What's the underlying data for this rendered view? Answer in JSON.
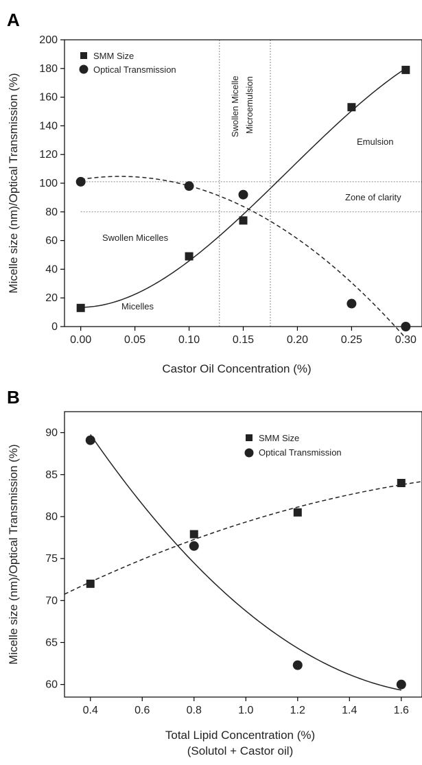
{
  "charts": [
    {
      "panel_label": "A",
      "xlabel": "Castor Oil Concentration (%)",
      "ylabel": "Micelle size (nm)/Optical Transmission (%)",
      "legend": [
        {
          "label": "SMM Size",
          "marker": "square"
        },
        {
          "label": "Optical Transmission",
          "marker": "circle"
        }
      ],
      "annotations": {
        "swollen_micelle": "Swollen Micelle",
        "microemulsion": "Microemulsion",
        "emulsion": "Emulsion",
        "zone_of_clarity": "Zone of clarity",
        "swollen_micelles": "Swollen Micelles",
        "micelles": "Micelles"
      }
    },
    {
      "panel_label": "B",
      "xlabel": "Total Lipid Concentration (%)",
      "xlabel2": "(Solutol + Castor oil)",
      "ylabel": "Micelle size (nm)/Optical Transmission (%)",
      "legend": [
        {
          "label": "SMM Size",
          "marker": "square"
        },
        {
          "label": "Optical Transmission",
          "marker": "circle"
        }
      ]
    }
  ],
  "chart_data": [
    {
      "type": "scatter",
      "xlim": [
        -0.015,
        0.315
      ],
      "ylim": [
        0,
        200
      ],
      "x_ticks": [
        "0.00",
        "0.05",
        "0.10",
        "0.15",
        "0.20",
        "0.25",
        "0.30"
      ],
      "y_ticks": [
        "0",
        "20",
        "40",
        "60",
        "80",
        "100",
        "120",
        "140",
        "160",
        "180",
        "200"
      ],
      "legend_position": "top-left",
      "grid": false,
      "series": [
        {
          "name": "SMM Size",
          "marker": "square",
          "fit_line": "solid",
          "points": [
            [
              0.0,
              13
            ],
            [
              0.1,
              49
            ],
            [
              0.15,
              74
            ],
            [
              0.25,
              153
            ],
            [
              0.3,
              179
            ]
          ]
        },
        {
          "name": "Optical Transmission",
          "marker": "circle",
          "fit_line": "dashed",
          "points": [
            [
              0.0,
              101
            ],
            [
              0.1,
              98
            ],
            [
              0.15,
              92
            ],
            [
              0.25,
              16
            ],
            [
              0.3,
              0
            ]
          ]
        }
      ],
      "reference_lines": {
        "vertical_x": [
          0.128,
          0.175
        ],
        "horizontal_y": [
          80,
          101
        ]
      }
    },
    {
      "type": "scatter",
      "xlim": [
        0.3,
        1.68
      ],
      "ylim": [
        58.5,
        92.5
      ],
      "x_ticks": [
        "0.4",
        "0.6",
        "0.8",
        "1.0",
        "1.2",
        "1.4",
        "1.6"
      ],
      "y_ticks": [
        "60",
        "65",
        "70",
        "75",
        "80",
        "85",
        "90"
      ],
      "legend_position": "top-right",
      "grid": false,
      "series": [
        {
          "name": "SMM Size",
          "marker": "square",
          "fit_line": "dashed",
          "points": [
            [
              0.4,
              72
            ],
            [
              0.8,
              77.9
            ],
            [
              1.2,
              80.5
            ],
            [
              1.6,
              84
            ]
          ]
        },
        {
          "name": "Optical Transmission",
          "marker": "circle",
          "fit_line": "solid",
          "points": [
            [
              0.4,
              89.1
            ],
            [
              0.8,
              76.5
            ],
            [
              1.2,
              62.3
            ],
            [
              1.6,
              60
            ]
          ]
        }
      ]
    }
  ]
}
